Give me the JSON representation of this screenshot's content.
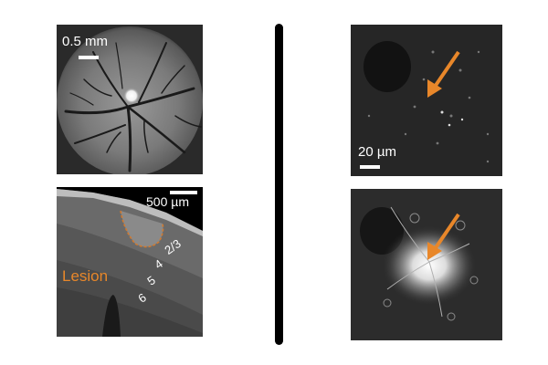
{
  "panels": {
    "window": {
      "scale_label": "0.5 mm"
    },
    "slice": {
      "scale_label": "500 µm",
      "lesion_label": "Lesion",
      "layers": [
        "2/3",
        "4",
        "5",
        "6"
      ]
    },
    "pre": {
      "scale_label": "20 µm"
    },
    "post": {}
  },
  "colors": {
    "accent": "#e8872a",
    "lesion": "#d07a30",
    "text_on_image": "#ffffff",
    "divider": "#000000"
  }
}
